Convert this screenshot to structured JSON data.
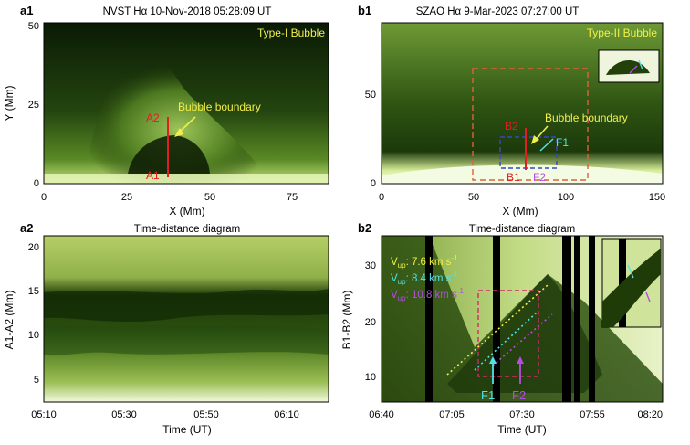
{
  "panels": {
    "a1": {
      "label": "a1",
      "title": "NVST Hα 10-Nov-2018 05:28:09 UT",
      "type_label": "Type-I Bubble",
      "xlabel": "X (Mm)",
      "ylabel": "Y (Mm)",
      "xticks": [
        "0",
        "25",
        "50",
        "75"
      ],
      "yticks": [
        "0",
        "25",
        "50"
      ],
      "annotations": {
        "boundary": "Bubble boundary",
        "a1": "A1",
        "a2": "A2"
      }
    },
    "b1": {
      "label": "b1",
      "title": "SZAO Hα  9-Mar-2023 07:27:00 UT",
      "type_label": "Type-II Bubble",
      "xlabel": "X (Mm)",
      "xticks": [
        "0",
        "50",
        "100",
        "150"
      ],
      "yticks": [
        "0",
        "50"
      ],
      "annotations": {
        "boundary": "Bubble boundary",
        "b1": "B1",
        "b2": "B2",
        "f1": "F1",
        "f2": "F2"
      }
    },
    "a2": {
      "label": "a2",
      "title": "Time-distance diagram",
      "xlabel": "Time (UT)",
      "ylabel": "A1-A2 (Mm)",
      "xticks": [
        "05:10",
        "05:30",
        "05:50",
        "06:10"
      ],
      "yticks": [
        "5",
        "10",
        "15",
        "20"
      ]
    },
    "b2": {
      "label": "b2",
      "title": "Time-distance diagram",
      "xlabel": "Time (UT)",
      "ylabel": "B1-B2 (Mm)",
      "xticks": [
        "06:40",
        "07:05",
        "07:30",
        "07:55",
        "08:20"
      ],
      "yticks": [
        "10",
        "20",
        "30"
      ],
      "annotations": {
        "f1": "F1",
        "f2": "F2"
      },
      "velocities": [
        {
          "v": "V",
          "sub": "up",
          "value": ": 7.6 km s",
          "sup": "-1",
          "color": "#f2ee4a"
        },
        {
          "v": "V",
          "sub": "up",
          "value": ": 8.4 km s",
          "sup": "-1",
          "color": "#4fe3e8"
        },
        {
          "v": "V",
          "sub": "up",
          "value": ": 10.8 km s",
          "sup": "-1",
          "color": "#b64de0"
        }
      ]
    }
  },
  "colors": {
    "annotation_yellow": "#f2ee4a",
    "cut_red": "#e02020",
    "cyan": "#4fe3e8",
    "purple": "#b64de0",
    "box_orange": "#e0603a",
    "box_blue": "#3848c8",
    "box_magenta": "#d02a6a"
  }
}
